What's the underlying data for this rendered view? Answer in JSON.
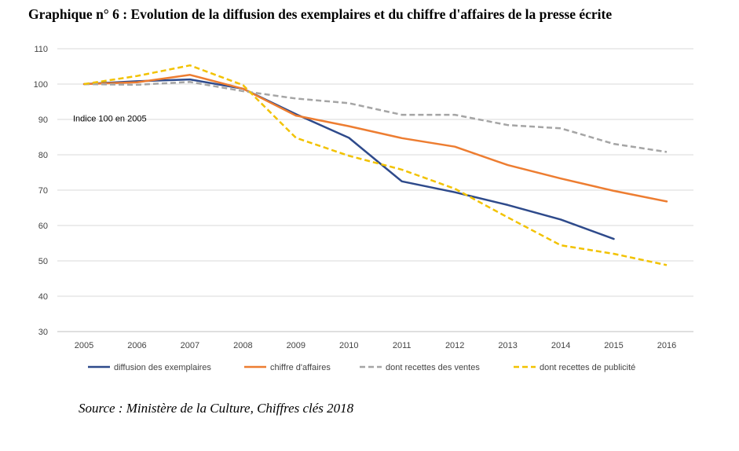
{
  "page": {
    "title": "Graphique n° 6 : Evolution de la diffusion des exemplaires et du chiffre d'affaires de la presse écrite",
    "source": "Source : Ministère de la Culture, Chiffres clés 2018"
  },
  "chart_data": {
    "type": "line",
    "annotation": "Indice 100 en 2005",
    "x": [
      2005,
      2006,
      2007,
      2008,
      2009,
      2010,
      2011,
      2012,
      2013,
      2014,
      2015,
      2016
    ],
    "ylim": [
      30,
      110
    ],
    "yticks": [
      30,
      40,
      50,
      60,
      70,
      80,
      90,
      100,
      110
    ],
    "grid": true,
    "legend_position": "bottom",
    "series": [
      {
        "name": "diffusion des exemplaires",
        "color": "#2E4A8B",
        "dashed": false,
        "values": [
          100,
          100.8,
          101.3,
          98.7,
          91.5,
          84.8,
          72.5,
          69.4,
          65.8,
          61.7,
          56.2,
          null
        ]
      },
      {
        "name": "chiffre d'affaires",
        "color": "#ED7D31",
        "dashed": false,
        "values": [
          100,
          100.5,
          102.6,
          98.7,
          91.1,
          88.1,
          84.7,
          82.3,
          77.1,
          73.3,
          69.8,
          66.8
        ]
      },
      {
        "name": "dont  recettes des ventes",
        "color": "#A5A5A5",
        "dashed": true,
        "values": [
          100,
          99.8,
          100.6,
          98.0,
          95.9,
          94.6,
          91.3,
          91.3,
          88.4,
          87.5,
          83.1,
          80.8
        ]
      },
      {
        "name": "dont  recettes de publicité",
        "color": "#F2C200",
        "dashed": true,
        "values": [
          100,
          102.3,
          105.3,
          99.7,
          84.8,
          79.7,
          75.8,
          70.4,
          62.3,
          54.4,
          52.0,
          48.8
        ]
      }
    ]
  }
}
